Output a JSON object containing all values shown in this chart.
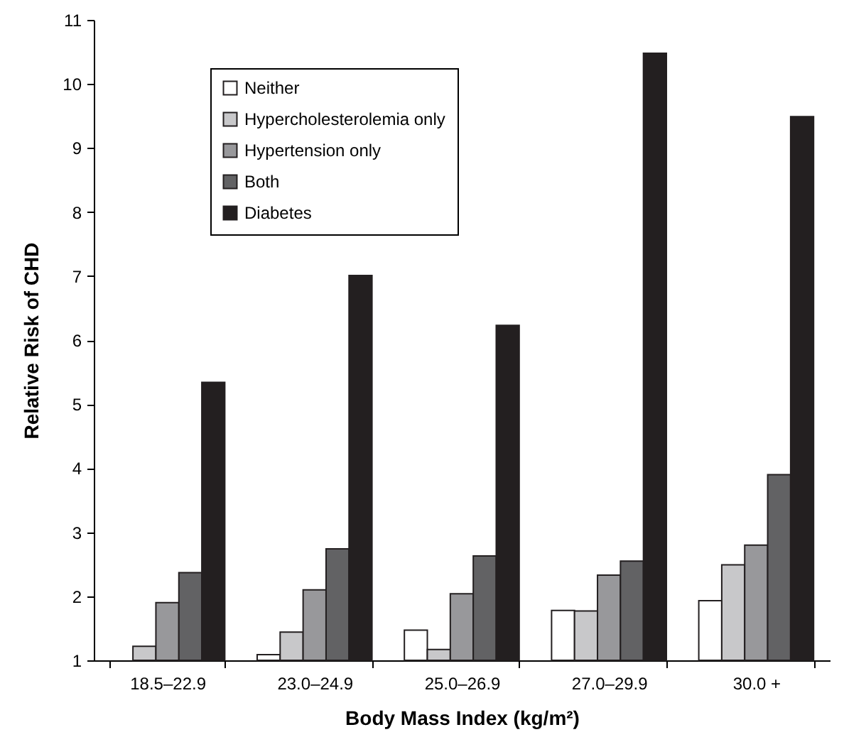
{
  "chart_data": {
    "type": "bar",
    "xlabel": "Body Mass Index (kg/m²)",
    "ylabel": "Relative Risk of CHD",
    "categories": [
      "18.5–22.9",
      "23.0–24.9",
      "25.0–26.9",
      "27.0–29.9",
      "30.0 +"
    ],
    "series": [
      {
        "name": "Neither",
        "color": "#ffffff",
        "values": [
          1,
          1.09,
          1.47,
          1.78,
          1.93
        ]
      },
      {
        "name": "Hypercholesterolemia only",
        "color": "#c8c8ca",
        "values": [
          1.22,
          1.44,
          1.17,
          1.77,
          2.49
        ]
      },
      {
        "name": "Hypertension only",
        "color": "#98989b",
        "values": [
          1.9,
          2.1,
          2.04,
          2.33,
          2.8
        ]
      },
      {
        "name": "Both",
        "color": "#626264",
        "values": [
          2.37,
          2.74,
          2.63,
          2.55,
          3.9
        ]
      },
      {
        "name": "Diabetes",
        "color": "#231f20",
        "values": [
          5.34,
          7.01,
          6.23,
          10.48,
          9.49
        ]
      }
    ],
    "ylim": [
      1,
      11
    ],
    "yticks": [
      1,
      2,
      3,
      4,
      5,
      6,
      7,
      8,
      9,
      10,
      11
    ],
    "grid": false,
    "legend": "top left"
  }
}
